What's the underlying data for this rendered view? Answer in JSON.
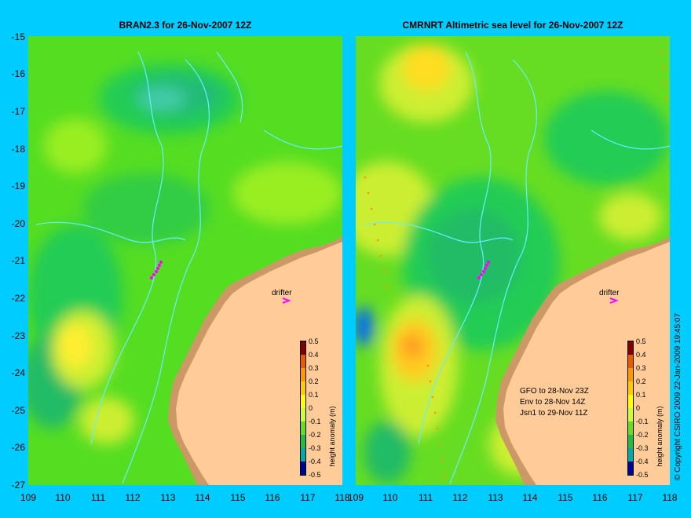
{
  "map_left": {
    "title": "BRAN2.3 for 26-Nov-2007 12Z",
    "drifter_label": "drifter",
    "colorbar_label": "height anomaly (m)"
  },
  "map_right": {
    "title": "CMRNRT Altimetric sea level  for 26-Nov-2007 12Z",
    "drifter_label": "drifter",
    "colorbar_label": "height anomaly (m)",
    "satellite_notes": [
      "GFO to 28-Nov 23Z",
      "Env to 28-Nov 14Z",
      "Jsn1 to 29-Nov 11Z"
    ]
  },
  "axes": {
    "latitude_labels": [
      "-15",
      "-16",
      "-17",
      "-18",
      "-19",
      "-20",
      "-21",
      "-22",
      "-23",
      "-24",
      "-25",
      "-26",
      "-27"
    ],
    "longitude_labels": [
      "109",
      "110",
      "111",
      "112",
      "113",
      "114",
      "115",
      "116",
      "117",
      "118"
    ]
  },
  "colorbar": {
    "tick_labels": [
      "0.5",
      "0.4",
      "0.3",
      "0.2",
      "0.1",
      "0",
      "-0.1",
      "-0.2",
      "-0.3",
      "-0.4",
      "-0.5"
    ],
    "colors": [
      "#800000",
      "#e65c00",
      "#ff9900",
      "#ffcc00",
      "#ffff00",
      "#ccff33",
      "#66dd22",
      "#22bb44",
      "#00aaaa",
      "#0066ff",
      "#000099"
    ]
  },
  "colors": {
    "background": "#00ccff",
    "land": "#ffcc99",
    "coast_shelf": "#cc9966",
    "drifter": "#ff00ff",
    "bathymetry": "#66eeff"
  },
  "copyright": "© Copyright CSIRO 2009    22-Jan-2009 19:45:07"
}
